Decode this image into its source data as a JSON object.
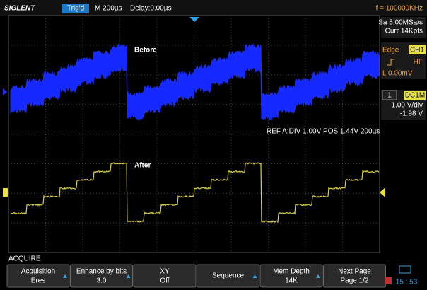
{
  "header": {
    "brand": "SIGLENT",
    "status": "Trig'd",
    "timebase": "M 200µs",
    "delay": "Delay:0.00µs",
    "frequency": "f = 100000KHz"
  },
  "side_panel": {
    "sample_rate": "Sa 5.00MSa/s",
    "memory": "Curr 14Kpts",
    "trigger_type": "Edge",
    "trigger_source": "CH1",
    "trigger_coupling": "HF",
    "trigger_level": "L  0.00mV",
    "channel_number": "1",
    "channel_coupling": "DC1M",
    "channel_scale": "1.00 V/div",
    "channel_offset": "-1.98 V"
  },
  "screen": {
    "label_before": "Before",
    "label_after": "After",
    "ref_info": "REF A:DIV 1.00V   POS:1.44V 200µs"
  },
  "menu": {
    "title": "ACQUIRE",
    "buttons": [
      {
        "label": "Acquisition",
        "value": "Eres"
      },
      {
        "label": "Enhance by bits",
        "value": "3.0"
      },
      {
        "label": "XY",
        "value": "Off"
      },
      {
        "label": "Sequence"
      },
      {
        "label": "Mem Depth",
        "value": "14K"
      },
      {
        "label": "Next Page",
        "value": "Page 1/2"
      }
    ],
    "clock": "15 : 53"
  }
}
